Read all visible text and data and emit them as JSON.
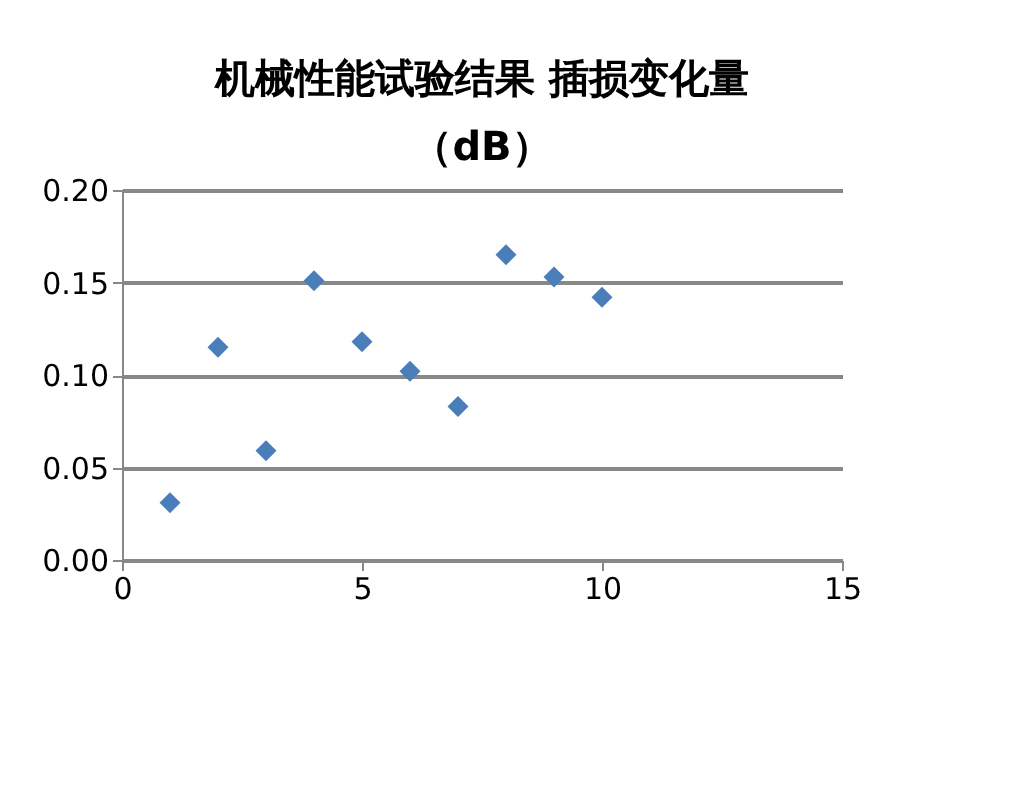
{
  "chart_data": {
    "type": "scatter",
    "title": "机械性能试验结果 插损变化量（dB）",
    "x": [
      1,
      2,
      3,
      4,
      5,
      6,
      7,
      8,
      9,
      10
    ],
    "series": [
      {
        "color": "#4a7ebb",
        "values": [
          0.031,
          0.115,
          0.059,
          0.151,
          0.118,
          0.102,
          0.083,
          0.165,
          0.153,
          0.142
        ]
      }
    ],
    "xlim": [
      0,
      15
    ],
    "xticks": [
      0,
      5,
      10,
      15
    ],
    "ylim": [
      0,
      0.2
    ],
    "yticks": [
      {
        "value": 0,
        "label": "0.00"
      },
      {
        "value": 0.05,
        "label": "0.05"
      },
      {
        "value": 0.1,
        "label": "0.10"
      },
      {
        "value": 0.15,
        "label": "0.15"
      },
      {
        "value": 0.2,
        "label": "0.20"
      }
    ],
    "grid": "y",
    "marker": "diamond",
    "legend": false
  }
}
